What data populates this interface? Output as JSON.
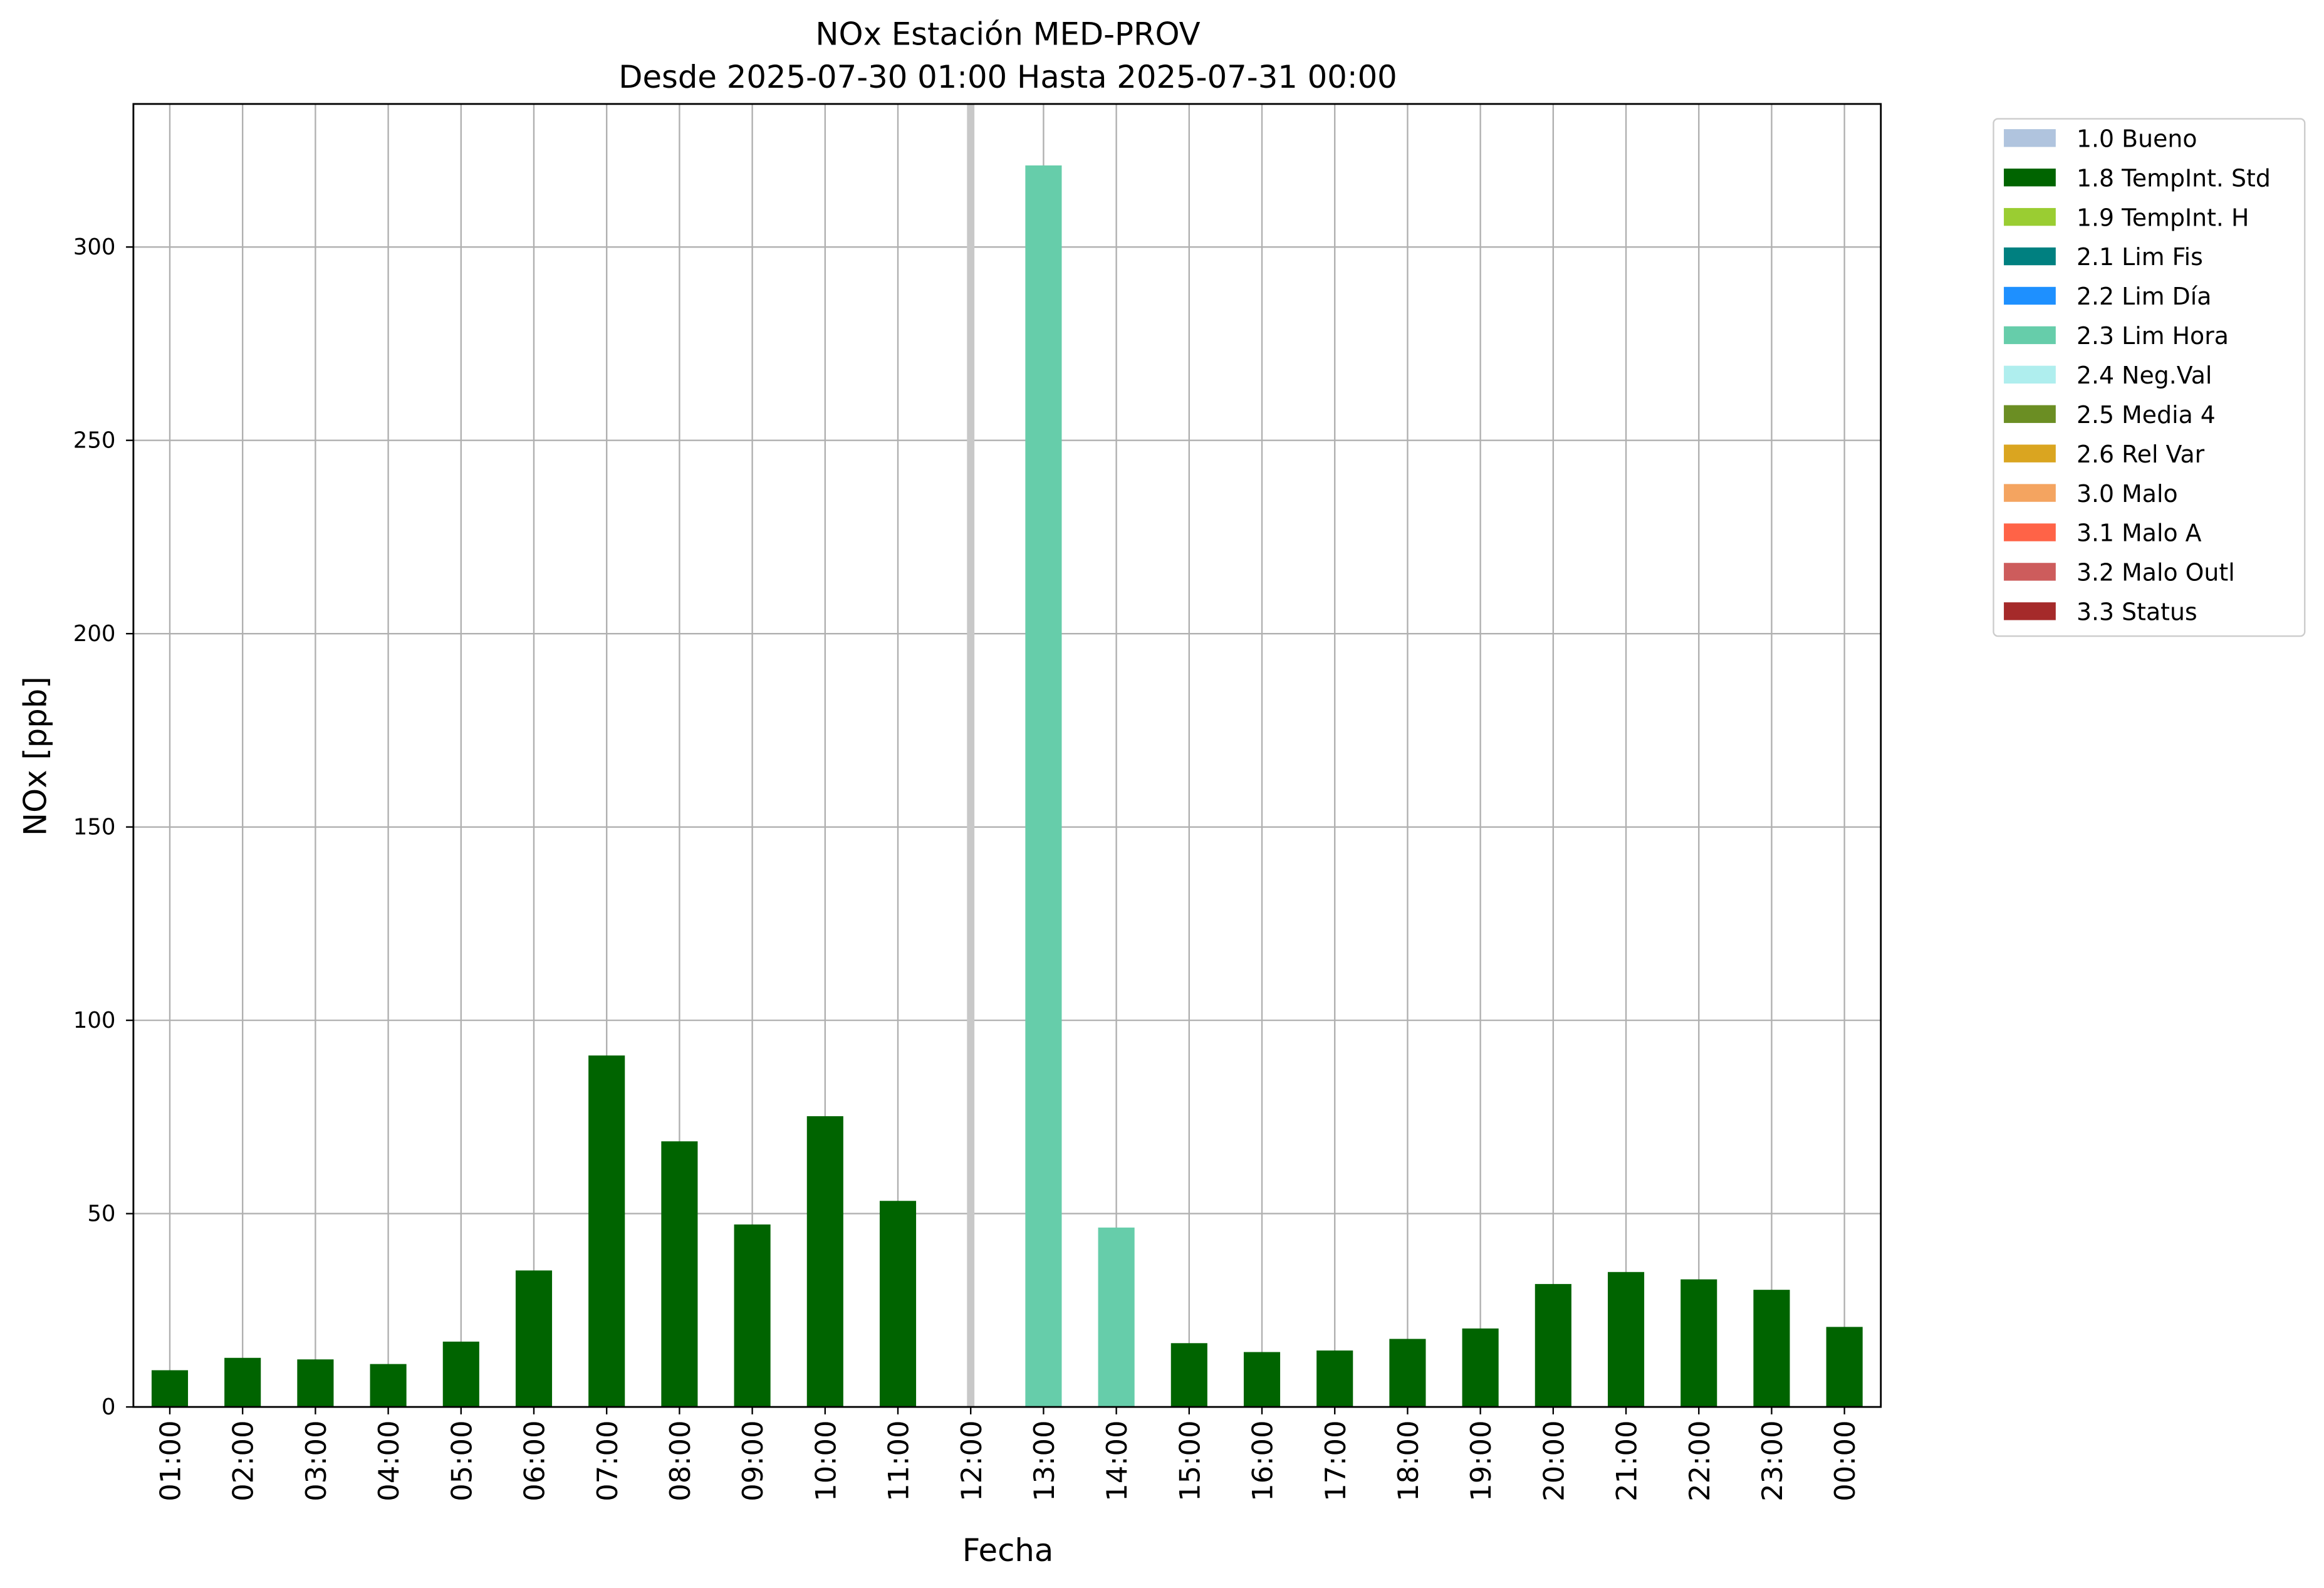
{
  "chart_data": {
    "type": "stacked_bar",
    "title": "NOx Estación MED-PROV",
    "subtitle": "Desde 2025-07-30 01:00 Hasta 2025-07-31 00:00",
    "x_label": "Fecha",
    "y_label": "NOx [ppb]",
    "categories": [
      "01:00",
      "02:00",
      "03:00",
      "04:00",
      "05:00",
      "06:00",
      "07:00",
      "08:00",
      "09:00",
      "10:00",
      "11:00",
      "12:00",
      "13:00",
      "14:00",
      "15:00",
      "16:00",
      "17:00",
      "18:00",
      "19:00",
      "20:00",
      "21:00",
      "22:00",
      "23:00",
      "00:00"
    ],
    "series": [
      {
        "name": "1.0 Bueno",
        "color": "#b0c4de",
        "values": [
          null,
          null,
          null,
          null,
          null,
          null,
          null,
          null,
          null,
          null,
          null,
          null,
          null,
          null,
          null,
          null,
          null,
          null,
          null,
          null,
          null,
          null,
          null,
          null
        ]
      },
      {
        "name": "1.8 TempInt. Std",
        "color": "#006400",
        "values": [
          9.5,
          12.7,
          12.3,
          11.1,
          16.9,
          35.3,
          90.9,
          68.7,
          47.2,
          75.2,
          53.3,
          null,
          null,
          null,
          16.5,
          14.2,
          14.6,
          17.6,
          20.3,
          31.8,
          34.9,
          33,
          30.3,
          20.7
        ]
      },
      {
        "name": "1.9 TempInt. H",
        "color": "#9acd32",
        "values": [
          null,
          null,
          null,
          null,
          null,
          null,
          null,
          null,
          null,
          null,
          null,
          null,
          null,
          null,
          null,
          null,
          null,
          null,
          null,
          null,
          null,
          null,
          null,
          null
        ]
      },
      {
        "name": "2.1 Lim Fis",
        "color": "#008080",
        "values": [
          null,
          null,
          null,
          null,
          null,
          null,
          null,
          null,
          null,
          null,
          null,
          null,
          null,
          null,
          null,
          null,
          null,
          null,
          null,
          null,
          null,
          null,
          null,
          null
        ]
      },
      {
        "name": "2.2 Lim Día",
        "color": "#1e90ff",
        "values": [
          null,
          null,
          null,
          null,
          null,
          null,
          null,
          null,
          null,
          null,
          null,
          null,
          null,
          null,
          null,
          null,
          null,
          null,
          null,
          null,
          null,
          null,
          null,
          null
        ]
      },
      {
        "name": "2.3 Lim Hora",
        "color": "#66cdaa",
        "values": [
          null,
          null,
          null,
          null,
          null,
          null,
          null,
          null,
          null,
          null,
          null,
          null,
          321.1,
          46.4,
          null,
          null,
          null,
          null,
          null,
          null,
          null,
          null,
          null,
          null
        ]
      },
      {
        "name": "2.4 Neg.Val",
        "color": "#afeeee",
        "values": [
          null,
          null,
          null,
          null,
          null,
          null,
          null,
          null,
          null,
          null,
          null,
          null,
          null,
          null,
          null,
          null,
          null,
          null,
          null,
          null,
          null,
          null,
          null,
          null
        ]
      },
      {
        "name": "2.5 Media 4",
        "color": "#6b8e23",
        "values": [
          null,
          null,
          null,
          null,
          null,
          null,
          null,
          null,
          null,
          null,
          null,
          null,
          null,
          null,
          null,
          null,
          null,
          null,
          null,
          null,
          null,
          null,
          null,
          null
        ]
      },
      {
        "name": "2.6 Rel Var",
        "color": "#daa520",
        "values": [
          null,
          null,
          null,
          null,
          null,
          null,
          null,
          null,
          null,
          null,
          null,
          null,
          null,
          null,
          null,
          null,
          null,
          null,
          null,
          null,
          null,
          null,
          null,
          null
        ]
      },
      {
        "name": "3.0 Malo",
        "color": "#f4a460",
        "values": [
          null,
          null,
          null,
          null,
          null,
          null,
          null,
          null,
          null,
          null,
          null,
          null,
          null,
          null,
          null,
          null,
          null,
          null,
          null,
          null,
          null,
          null,
          null,
          null
        ]
      },
      {
        "name": "3.1 Malo A",
        "color": "#ff6347",
        "values": [
          null,
          null,
          null,
          null,
          null,
          null,
          null,
          null,
          null,
          null,
          null,
          null,
          null,
          null,
          null,
          null,
          null,
          null,
          null,
          null,
          null,
          null,
          null,
          null
        ]
      },
      {
        "name": "3.2 Malo Outl",
        "color": "#cd5c5c",
        "values": [
          null,
          null,
          null,
          null,
          null,
          null,
          null,
          null,
          null,
          null,
          null,
          null,
          null,
          null,
          null,
          null,
          null,
          null,
          null,
          null,
          null,
          null,
          null,
          null
        ]
      },
      {
        "name": "3.3 Status",
        "color": "#a52a2a",
        "values": [
          null,
          null,
          null,
          null,
          null,
          null,
          null,
          null,
          null,
          null,
          null,
          null,
          null,
          null,
          null,
          null,
          null,
          null,
          null,
          null,
          null,
          null,
          null,
          null
        ]
      }
    ],
    "ylim": [
      0,
      337
    ],
    "yticks": [
      0,
      50,
      100,
      150,
      200,
      250,
      300
    ],
    "grid": true,
    "legend": "outside-upper-right"
  }
}
